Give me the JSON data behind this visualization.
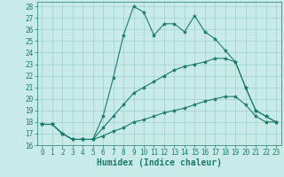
{
  "xlabel": "Humidex (Indice chaleur)",
  "x": [
    0,
    1,
    2,
    3,
    4,
    5,
    6,
    7,
    8,
    9,
    10,
    11,
    12,
    13,
    14,
    15,
    16,
    17,
    18,
    19,
    20,
    21,
    22,
    23
  ],
  "line1": [
    17.8,
    17.8,
    17.0,
    16.5,
    16.5,
    16.5,
    18.5,
    21.8,
    25.5,
    28.0,
    27.5,
    25.5,
    26.5,
    26.5,
    25.8,
    27.2,
    25.8,
    25.2,
    24.2,
    23.2,
    21.0,
    19.0,
    18.5,
    18.0
  ],
  "line2": [
    17.8,
    17.8,
    17.0,
    16.5,
    16.5,
    16.5,
    17.5,
    18.5,
    19.5,
    20.5,
    21.0,
    21.5,
    22.0,
    22.5,
    22.8,
    23.0,
    23.2,
    23.5,
    23.5,
    23.2,
    21.0,
    19.0,
    18.5,
    18.0
  ],
  "line3": [
    17.8,
    17.8,
    17.0,
    16.5,
    16.5,
    16.5,
    16.8,
    17.2,
    17.5,
    18.0,
    18.2,
    18.5,
    18.8,
    19.0,
    19.2,
    19.5,
    19.8,
    20.0,
    20.2,
    20.2,
    19.5,
    18.5,
    18.0,
    18.0
  ],
  "line_color": "#1a7a6e",
  "bg_color": "#c8ebe8",
  "grid_color": "#a0d0cc",
  "xlim": [
    -0.5,
    23.5
  ],
  "ylim": [
    16,
    28.4
  ],
  "yticks": [
    16,
    17,
    18,
    19,
    20,
    21,
    22,
    23,
    24,
    25,
    26,
    27,
    28
  ],
  "xticks": [
    0,
    1,
    2,
    3,
    4,
    5,
    6,
    7,
    8,
    9,
    10,
    11,
    12,
    13,
    14,
    15,
    16,
    17,
    18,
    19,
    20,
    21,
    22,
    23
  ],
  "tick_fontsize": 5.5,
  "xlabel_fontsize": 7
}
